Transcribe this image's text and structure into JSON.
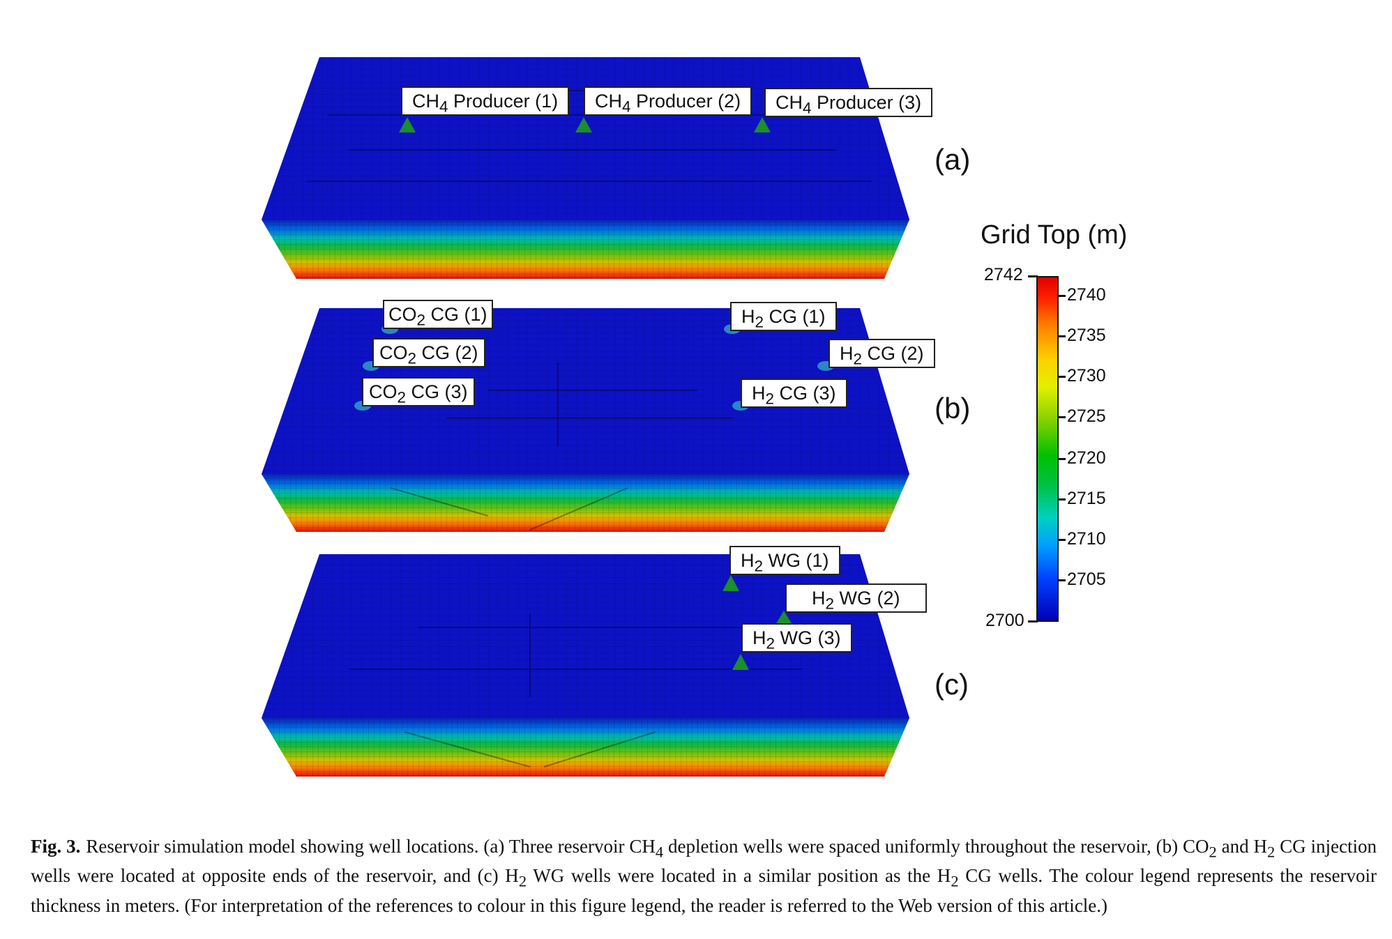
{
  "panels": {
    "a": {
      "letter": "(a)",
      "wells": [
        {
          "base": "CH",
          "sub": "4",
          "rest": " Producer (1)"
        },
        {
          "base": "CH",
          "sub": "4",
          "rest": " Producer (2)"
        },
        {
          "base": "CH",
          "sub": "4",
          "rest": " Producer (3)"
        }
      ]
    },
    "b": {
      "letter": "(b)",
      "wells": [
        {
          "base": "CO",
          "sub": "2",
          "rest": " CG (1)"
        },
        {
          "base": "CO",
          "sub": "2",
          "rest": " CG (2)"
        },
        {
          "base": "CO",
          "sub": "2",
          "rest": " CG (3)"
        },
        {
          "base": "H",
          "sub": "2",
          "rest": " CG (1)"
        },
        {
          "base": "H",
          "sub": "2",
          "rest": " CG (2)"
        },
        {
          "base": "H",
          "sub": "2",
          "rest": " CG (3)"
        }
      ]
    },
    "c": {
      "letter": "(c)",
      "wells": [
        {
          "base": "H",
          "sub": "2",
          "rest": " WG (1)"
        },
        {
          "base": "H",
          "sub": "2",
          "rest": " WG (2)"
        },
        {
          "base": "H",
          "sub": "2",
          "rest": " WG (3)"
        }
      ]
    }
  },
  "legend": {
    "title": "Grid Top (m)",
    "min_label": "2700",
    "max_label": "2742",
    "ticks": [
      "2740",
      "2735",
      "2730",
      "2725",
      "2720",
      "2715",
      "2710",
      "2705"
    ],
    "colors": {
      "low": "#0000b4",
      "mid": "#00c000",
      "high": "#e00000"
    }
  },
  "caption": {
    "label": "Fig. 3.",
    "parts": [
      "Reservoir simulation model showing well locations. (a) Three reservoir CH",
      "4",
      " depletion wells were spaced uniformly throughout the reservoir, (b) CO",
      "2",
      " and H",
      "2",
      " CG injection wells were located at opposite ends of the reservoir, and (c) H",
      "2",
      " WG wells were located in a similar position as the H",
      "2",
      " CG wells. The colour legend represents the reservoir thickness in meters. (For interpretation of the references to colour in this figure legend, the reader is referred to the Web version of this article.)"
    ]
  }
}
